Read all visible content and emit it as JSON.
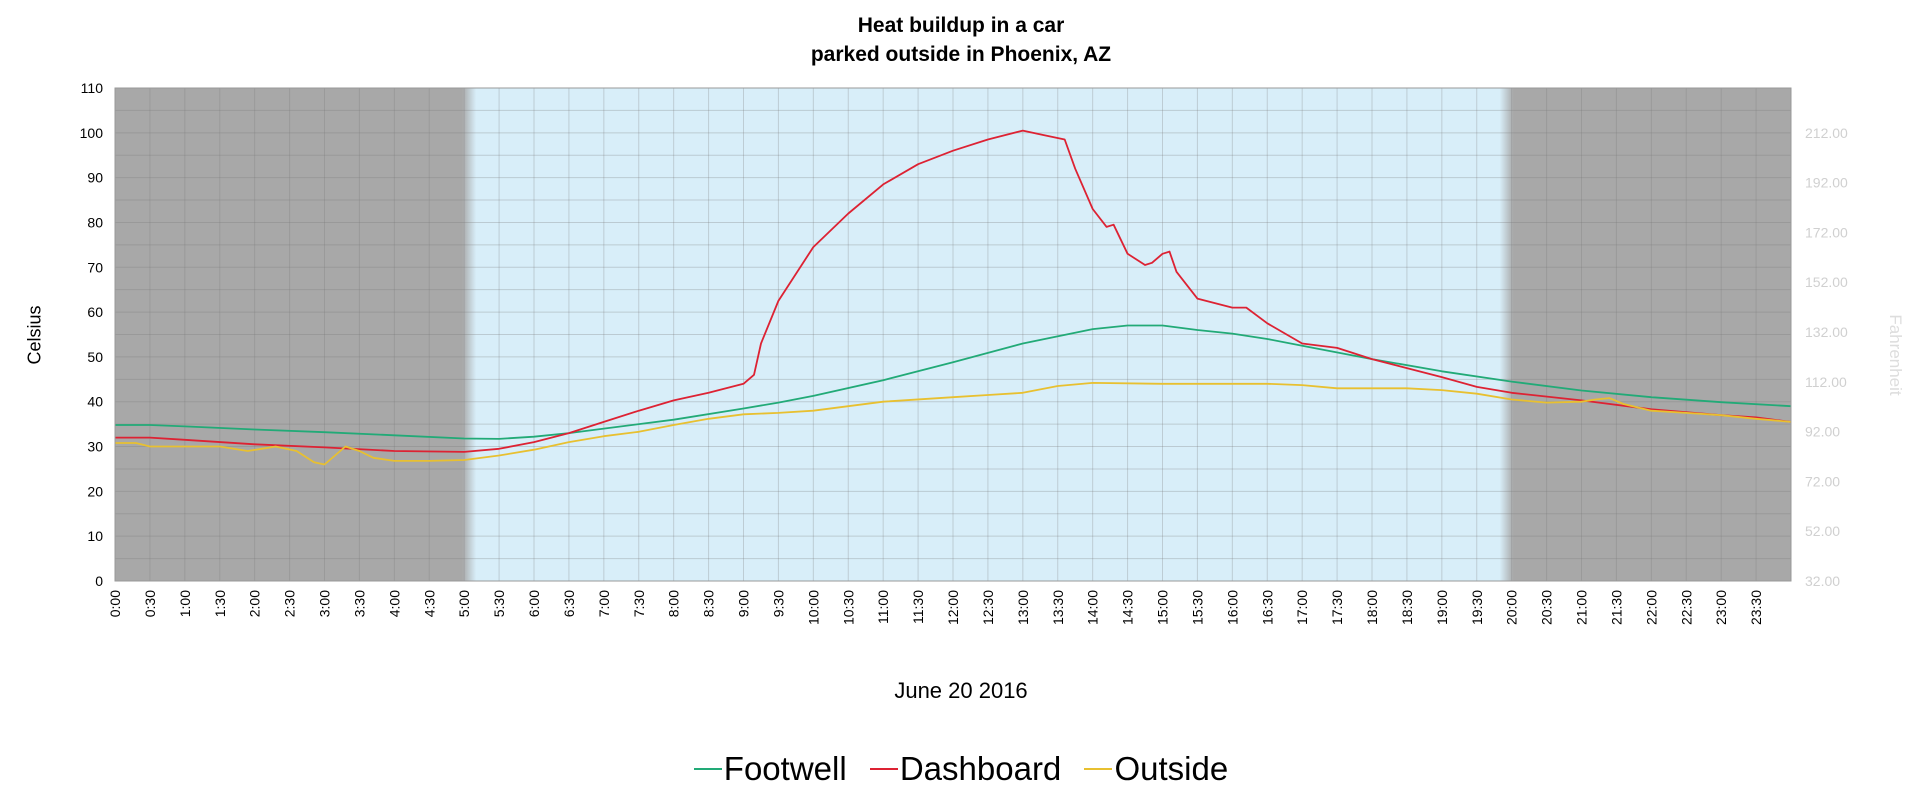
{
  "chart_data": {
    "type": "line",
    "title": "Heat buildup in a car",
    "subtitle": "parked outside in Phoenix, AZ",
    "xlabel": "June 20 2016",
    "ylabel": "Celsius",
    "ylabel_right": "Fahrenheit",
    "ylim": [
      0,
      110
    ],
    "ylim_right": [
      32,
      230
    ],
    "yticks": [
      0,
      10,
      20,
      30,
      40,
      50,
      60,
      70,
      80,
      90,
      100,
      110
    ],
    "yticks_right": [
      "32.00",
      "52.00",
      "72.00",
      "92.00",
      "112.00",
      "132.00",
      "152.00",
      "172.00",
      "192.00",
      "212.00"
    ],
    "x_tick_labels": [
      "0:00",
      "0:30",
      "1:00",
      "1:30",
      "2:00",
      "2:30",
      "3:00",
      "3:30",
      "4:00",
      "4:30",
      "5:00",
      "5:30",
      "6:00",
      "6:30",
      "7:00",
      "7:30",
      "8:00",
      "8:30",
      "9:00",
      "9:30",
      "10:00",
      "10:30",
      "11:00",
      "11:30",
      "12:00",
      "12:30",
      "13:00",
      "13:30",
      "14:00",
      "14:30",
      "15:00",
      "15:30",
      "16:00",
      "16:30",
      "17:00",
      "17:30",
      "18:00",
      "18:30",
      "19:00",
      "19:30",
      "20:00",
      "20:30",
      "21:00",
      "21:30",
      "22:00",
      "22:30",
      "23:00",
      "23:30"
    ],
    "x_unit": "hours",
    "xlim": [
      0,
      24
    ],
    "night_shading": [
      [
        0,
        5
      ],
      [
        20,
        24
      ]
    ],
    "grid": true,
    "legend_position": "bottom",
    "background_colors": {
      "night": "#a8a8a8",
      "day": "#d8eef9"
    },
    "series": [
      {
        "name": "Footwell",
        "color": "#22aa77",
        "x": [
          0,
          0.5,
          1,
          2,
          3,
          4,
          5,
          5.5,
          6,
          6.5,
          7,
          8,
          9,
          9.5,
          10,
          11,
          12,
          13,
          14,
          14.5,
          15,
          15.5,
          16,
          16.5,
          17,
          18,
          19,
          20,
          21,
          22,
          23,
          24
        ],
        "values": [
          34.8,
          34.8,
          34.5,
          33.8,
          33.2,
          32.5,
          31.8,
          31.7,
          32.2,
          33.0,
          34.0,
          36.0,
          38.5,
          39.8,
          41.3,
          44.8,
          48.8,
          53.0,
          56.2,
          57.0,
          57.0,
          56.0,
          55.2,
          54.0,
          52.5,
          49.5,
          46.8,
          44.5,
          42.5,
          41.0,
          39.9,
          39.0
        ]
      },
      {
        "name": "Dashboard",
        "color": "#dd2233",
        "x": [
          0,
          0.5,
          1,
          2,
          3,
          4,
          5,
          5.5,
          6,
          6.5,
          7,
          7.5,
          8,
          8.5,
          9,
          9.15,
          9.25,
          9.5,
          10,
          10.5,
          11,
          11.5,
          12,
          12.5,
          13,
          13.3,
          13.6,
          13.75,
          14,
          14.2,
          14.3,
          14.5,
          14.75,
          14.85,
          15.0,
          15.1,
          15.2,
          15.5,
          16.0,
          16.2,
          16.5,
          17,
          17.5,
          18,
          18.5,
          19,
          19.5,
          20,
          21,
          22,
          23,
          23.5,
          24
        ],
        "values": [
          32.0,
          32.0,
          31.5,
          30.5,
          29.8,
          29.0,
          28.8,
          29.5,
          31.0,
          33.0,
          35.5,
          38.0,
          40.3,
          42.0,
          44.0,
          46.0,
          53.0,
          62.5,
          74.5,
          82.0,
          88.5,
          93.0,
          96.0,
          98.5,
          100.5,
          99.5,
          98.5,
          92.0,
          83.0,
          79.0,
          79.5,
          73.0,
          70.5,
          71.0,
          73.0,
          73.5,
          69.0,
          63.0,
          61.0,
          61.0,
          57.5,
          53.0,
          52.0,
          49.5,
          47.5,
          45.5,
          43.3,
          42.0,
          40.3,
          38.3,
          37.0,
          36.5,
          35.5
        ]
      },
      {
        "name": "Outside",
        "color": "#e8c030",
        "x": [
          0,
          0.3,
          0.5,
          1,
          1.5,
          1.9,
          2.1,
          2.3,
          2.6,
          2.85,
          3.0,
          3.15,
          3.3,
          3.5,
          3.7,
          4.0,
          4.5,
          5.0,
          5.5,
          6,
          6.5,
          7,
          7.5,
          8,
          8.5,
          9,
          9.5,
          10,
          11,
          12,
          12.5,
          13,
          13.5,
          14,
          15,
          16,
          16.5,
          17,
          17.5,
          18,
          18.5,
          19,
          19.5,
          20,
          20.5,
          21,
          21.2,
          21.4,
          21.6,
          22,
          22.5,
          23,
          23.5,
          24
        ],
        "values": [
          30.8,
          30.8,
          30.0,
          30.0,
          30.0,
          29.0,
          29.5,
          30.0,
          29.0,
          26.5,
          26.0,
          28.0,
          30.0,
          29.0,
          27.5,
          26.8,
          26.8,
          27.0,
          28.0,
          29.3,
          31.0,
          32.3,
          33.3,
          34.8,
          36.2,
          37.2,
          37.5,
          38.0,
          40.0,
          41.0,
          41.5,
          42.0,
          43.5,
          44.2,
          44.0,
          44.0,
          44.0,
          43.7,
          43.0,
          43.0,
          43.0,
          42.6,
          41.8,
          40.5,
          39.8,
          40.0,
          40.5,
          40.8,
          39.5,
          38.0,
          37.5,
          37.0,
          36.2,
          35.5
        ]
      }
    ]
  }
}
